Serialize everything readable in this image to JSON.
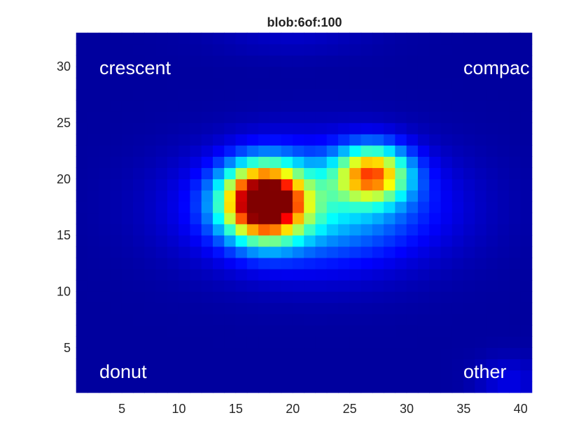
{
  "chart_data": {
    "type": "heatmap",
    "title": "blob:6of:100",
    "xlabel": "",
    "ylabel": "",
    "xlim": [
      1,
      41
    ],
    "ylim": [
      1,
      33
    ],
    "colormap": "jet",
    "grid": false,
    "x_ticks": [
      "5",
      "10",
      "15",
      "20",
      "25",
      "30",
      "35",
      "40"
    ],
    "y_ticks": [
      "5",
      "10",
      "15",
      "20",
      "25",
      "30"
    ],
    "annotations": [
      {
        "text": "crescent",
        "position": "top-left"
      },
      {
        "text": "compac",
        "position": "top-right"
      },
      {
        "text": "donut",
        "position": "bottom-left"
      },
      {
        "text": "other",
        "position": "bottom-right"
      }
    ],
    "components": [
      {
        "x": 17.5,
        "y": 18,
        "sx": 2.4,
        "sy": 2.2,
        "amp": 1.0
      },
      {
        "x": 27,
        "y": 20.5,
        "sx": 2.2,
        "sy": 1.7,
        "amp": 0.62
      },
      {
        "x": 22,
        "y": 17.5,
        "sx": 7.0,
        "sy": 3.5,
        "amp": 0.32
      },
      {
        "x": 39,
        "y": 2,
        "sx": 2.0,
        "sy": 1.5,
        "amp": 0.07
      },
      {
        "x": 20,
        "y": 33,
        "sx": 5.0,
        "sy": 1.5,
        "amp": 0.04
      }
    ],
    "background_level": 0.03
  }
}
